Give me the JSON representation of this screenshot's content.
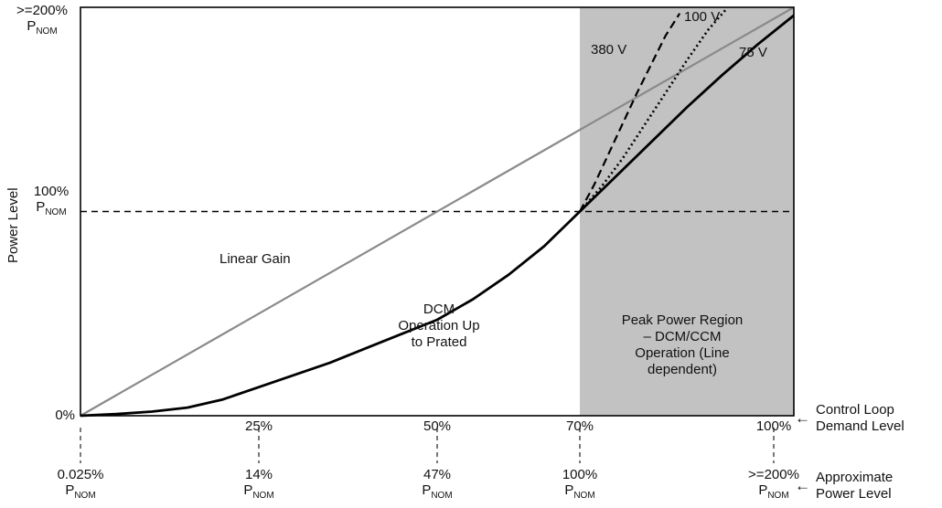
{
  "pnom": {
    "p": "P",
    "sub": "NOM"
  },
  "y_axis": {
    "title": "Power Level",
    "top": {
      "value": ">=200%"
    },
    "mid": {
      "value": "100%"
    },
    "origin": "0%"
  },
  "x_axis": {
    "ticks": [
      {
        "label": "25%"
      },
      {
        "label": "50%"
      },
      {
        "label": "70%"
      },
      {
        "label": "100%"
      }
    ],
    "arrow": "←",
    "caption": [
      "Control Loop",
      "Demand Level"
    ]
  },
  "x_axis2": {
    "ticks": [
      {
        "value": "0.025%"
      },
      {
        "value": "14%"
      },
      {
        "value": "47%"
      },
      {
        "value": "100%"
      },
      {
        "value": ">=200%"
      }
    ],
    "arrow": "←",
    "caption": [
      "Approximate",
      "Power Level"
    ]
  },
  "plot_labels": {
    "dcm_region": [
      "DCM",
      "Operation Up",
      "to Prated"
    ],
    "peak_region": [
      "Peak Power Region",
      "– DCM/CCM",
      "Operation (Line",
      "dependent)"
    ]
  },
  "chart_data": {
    "type": "line",
    "title": "",
    "xlabel": "Control Loop Demand Level",
    "xlabel2": "Approximate Power Level",
    "ylabel": "Power Level (% of PNOM)",
    "xlim": [
      0,
      100
    ],
    "ylim": [
      0,
      200
    ],
    "x_tick_values": [
      0,
      25,
      50,
      70,
      100
    ],
    "x_tick_power_map": [
      "0.025% PNOM",
      "14% PNOM",
      "47% PNOM",
      "100% PNOM",
      ">=200% PNOM"
    ],
    "reference_line_y": 100,
    "region": {
      "x0": 70,
      "x1": 100,
      "color": "#c2c2c2",
      "label": "Peak Power Region – DCM/CCM Operation (Line dependent)"
    },
    "annotations": [
      "Linear Gain",
      "DCM Operation Up to Prated",
      "Peak Power Region – DCM/CCM Operation (Line dependent)"
    ],
    "series": [
      {
        "name": "Linear Gain",
        "style": "solid",
        "color": "#8a8a8a",
        "width": 2.2,
        "points": [
          [
            0,
            0
          ],
          [
            100,
            200
          ]
        ]
      },
      {
        "name": "75 V",
        "style": "solid",
        "color": "#000000",
        "width": 2.8,
        "points": [
          [
            0,
            0
          ],
          [
            5,
            0.8
          ],
          [
            10,
            2
          ],
          [
            15,
            4
          ],
          [
            20,
            8
          ],
          [
            25,
            14
          ],
          [
            30,
            20
          ],
          [
            35,
            26
          ],
          [
            40,
            33
          ],
          [
            45,
            40
          ],
          [
            50,
            47
          ],
          [
            55,
            57
          ],
          [
            60,
            69
          ],
          [
            65,
            83
          ],
          [
            70,
            100
          ],
          [
            75,
            117
          ],
          [
            80,
            134
          ],
          [
            85,
            151
          ],
          [
            90,
            167
          ],
          [
            95,
            182
          ],
          [
            100,
            196
          ]
        ]
      },
      {
        "name": "100 V",
        "style": "dotted",
        "color": "#000000",
        "width": 2.6,
        "points": [
          [
            70,
            100
          ],
          [
            73,
            112
          ],
          [
            76,
            126
          ],
          [
            79,
            142
          ],
          [
            82,
            158
          ],
          [
            85,
            174
          ],
          [
            88,
            189
          ],
          [
            90.5,
            199
          ]
        ]
      },
      {
        "name": "380 V",
        "style": "dashed",
        "color": "#000000",
        "width": 2.2,
        "points": [
          [
            70,
            100
          ],
          [
            72,
            113
          ],
          [
            74,
            128
          ],
          [
            76,
            143
          ],
          [
            78,
            158
          ],
          [
            80,
            172
          ],
          [
            82,
            186
          ],
          [
            84,
            197
          ]
        ]
      }
    ]
  }
}
